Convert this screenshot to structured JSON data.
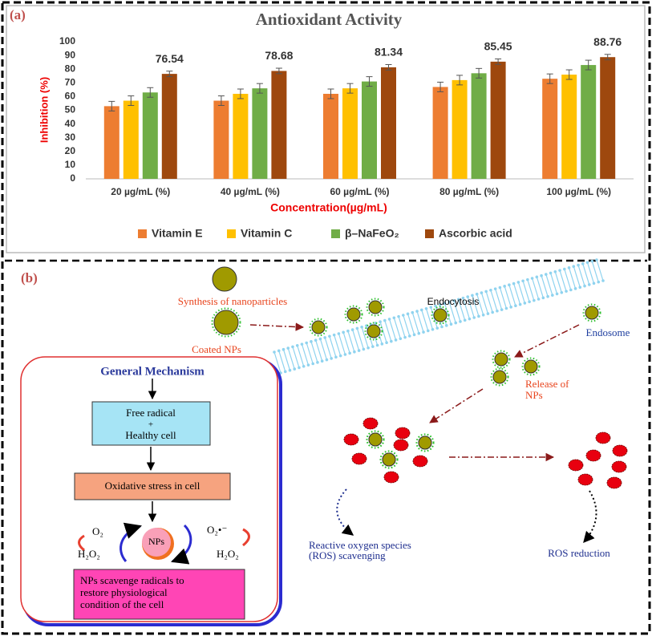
{
  "chart_data": {
    "type": "bar",
    "title": "Antioxidant Activity",
    "x_label": "Concentration(µg/mL)",
    "y_label": "Inhibition (%)",
    "categories": [
      "20 µg/mL (%)",
      "40 µg/mL (%)",
      "60 µg/mL (%)",
      "80 µg/mL (%)",
      "100 µg/mL (%)"
    ],
    "series": [
      {
        "name": "Vitamin E",
        "color": "#ed7d31",
        "values": [
          53,
          57,
          62,
          67,
          73
        ],
        "errors": [
          3.5,
          3.5,
          3.5,
          3.5,
          3.5
        ]
      },
      {
        "name": "Vitamin C",
        "color": "#ffc000",
        "values": [
          57,
          62,
          66,
          72,
          76
        ],
        "errors": [
          3.5,
          3.5,
          3.5,
          3.5,
          3.5
        ]
      },
      {
        "name": "β–NaFeO₂",
        "color": "#70ad47",
        "values": [
          63,
          66,
          71,
          77,
          83
        ],
        "errors": [
          3.5,
          3.5,
          3.5,
          3.5,
          3.5
        ]
      },
      {
        "name": "Ascorbic acid",
        "color": "#9e480e",
        "values": [
          76.54,
          78.68,
          81.34,
          85.45,
          88.76
        ],
        "errors": [
          2,
          2,
          2,
          2,
          2
        ],
        "labels": true
      }
    ],
    "ylim": [
      0,
      100
    ],
    "yticks": [
      0,
      10,
      20,
      30,
      40,
      50,
      60,
      70,
      80,
      90,
      100
    ],
    "grid": false,
    "legend": "bottom"
  },
  "panel_labels": [
    "(a)",
    "(b)"
  ],
  "diagram": {
    "synthesis": "Synthesis of nanoparticles",
    "coated": "Coated NPs",
    "endocytosis": "Endocytosis",
    "endosome": "Endosome",
    "release": [
      "Release of",
      "NPs"
    ],
    "mechanism": {
      "title": "General Mechanism",
      "box1": [
        "Free radical",
        "+",
        "Healthy cell"
      ],
      "box2": "Oxidative stress in cell",
      "center": "NPs",
      "left": [
        "O₂",
        "H₂O₂"
      ],
      "right": [
        "O₂•⁻",
        "H₂O₂"
      ],
      "box3": [
        "NPs scavenge radicals to",
        "restore physiological",
        "condition of the cell"
      ]
    },
    "ros_scavenging": [
      "Reactive oxygen species",
      "(ROS) scavenging"
    ],
    "ros_reduction": "ROS reduction"
  }
}
